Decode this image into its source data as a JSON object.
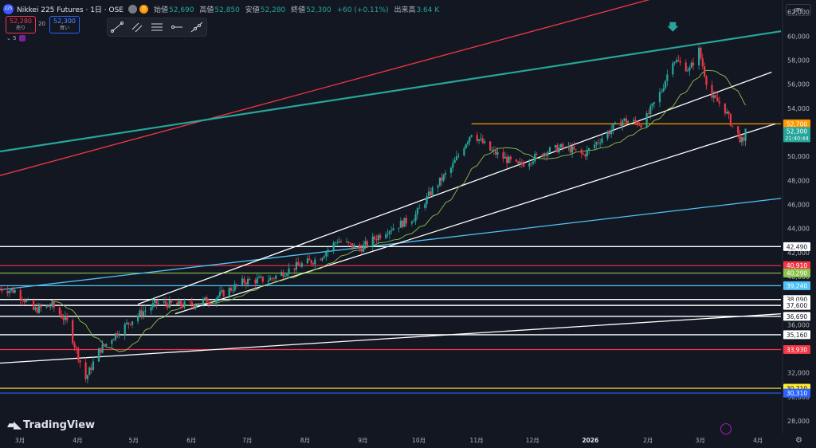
{
  "header": {
    "logo_text": "225",
    "symbol": "Nikkei 225 Futures · 1日 · OSE",
    "badge_d": "D",
    "open_label": "始値",
    "open_value": "52,690",
    "high_label": "高値",
    "high_value": "52,850",
    "low_label": "安値",
    "low_value": "52,280",
    "close_label": "終値",
    "close_value": "52,300",
    "change": "+60 (+0.11%)",
    "volume_label": "出来高",
    "volume_value": "3.64 K"
  },
  "trade": {
    "sell_price": "52,280",
    "sell_label": "売り",
    "quantity": "20",
    "buy_price": "52,300",
    "buy_label": "買い",
    "lot": "5"
  },
  "toolbar_icons": [
    "trend-line-icon",
    "channel-icon",
    "fib-icon",
    "ray-icon",
    "extended-line-icon"
  ],
  "currency": "JPY",
  "brand": "TradingView",
  "colors": {
    "up": "#26a69a",
    "down": "#f23645",
    "ma": "#8bc34a",
    "teal_trend": "#26a69a",
    "red_trend": "#f23645",
    "blue_trend": "#4fc3f7",
    "orange_level": "#ff9800"
  },
  "chart_data": {
    "type": "candlestick",
    "ylim": [
      27000,
      63000
    ],
    "y_ticks": [
      28000,
      30000,
      32000,
      34000,
      36000,
      38000,
      40000,
      42000,
      44000,
      46000,
      48000,
      50000,
      52000,
      54000,
      56000,
      58000,
      60000,
      62000
    ],
    "x_ticks": [
      "3月",
      "4月",
      "5月",
      "6月",
      "7月",
      "8月",
      "9月",
      "10月",
      "11月",
      "12月",
      "2026",
      "2月",
      "3月",
      "4月"
    ],
    "last_price": {
      "value": 52300,
      "timer": "21:40:44"
    },
    "price_levels": [
      {
        "value": 52700,
        "label": "52,700",
        "color": "#ff9800"
      },
      {
        "value": 42490,
        "label": "42,490",
        "color": "#ffffff"
      },
      {
        "value": 40910,
        "label": "40,910",
        "color": "#f23645"
      },
      {
        "value": 40290,
        "label": "40,290",
        "color": "#8bc34a"
      },
      {
        "value": 39240,
        "label": "39,240",
        "color": "#4fc3f7"
      },
      {
        "value": 38090,
        "label": "38,090",
        "color": "#ffffff"
      },
      {
        "value": 37600,
        "label": "37,600",
        "color": "#ffffff"
      },
      {
        "value": 36690,
        "label": "36,690",
        "color": "#ffffff"
      },
      {
        "value": 35160,
        "label": "35,160",
        "color": "#ffffff"
      },
      {
        "value": 33930,
        "label": "33,930",
        "color": "#f23645"
      },
      {
        "value": 30710,
        "label": "30,710",
        "color": "#ffeb3b"
      },
      {
        "value": 30310,
        "label": "30,310",
        "color": "#2962ff"
      }
    ],
    "close_path": [
      [
        "2025-02-20",
        39000
      ],
      [
        "2025-03-01",
        38800
      ],
      [
        "2025-03-10",
        37200
      ],
      [
        "2025-03-20",
        37600
      ],
      [
        "2025-03-28",
        36200
      ],
      [
        "2025-04-07",
        31500
      ],
      [
        "2025-04-14",
        33800
      ],
      [
        "2025-04-25",
        35500
      ],
      [
        "2025-05-05",
        36800
      ],
      [
        "2025-05-15",
        37800
      ],
      [
        "2025-06-01",
        37600
      ],
      [
        "2025-06-15",
        38200
      ],
      [
        "2025-07-01",
        39600
      ],
      [
        "2025-07-15",
        39800
      ],
      [
        "2025-07-28",
        40800
      ],
      [
        "2025-08-10",
        41500
      ],
      [
        "2025-08-20",
        43000
      ],
      [
        "2025-09-01",
        42300
      ],
      [
        "2025-09-15",
        43800
      ],
      [
        "2025-09-30",
        44900
      ],
      [
        "2025-10-10",
        47200
      ],
      [
        "2025-10-20",
        49000
      ],
      [
        "2025-10-31",
        52000
      ],
      [
        "2025-11-10",
        50500
      ],
      [
        "2025-11-25",
        49200
      ],
      [
        "2025-12-10",
        50400
      ],
      [
        "2025-12-20",
        50800
      ],
      [
        "2025-12-30",
        50100
      ],
      [
        "2026-01-10",
        51700
      ],
      [
        "2026-01-20",
        53000
      ],
      [
        "2026-01-31",
        52700
      ],
      [
        "2026-02-10",
        55500
      ],
      [
        "2026-02-16",
        58100
      ],
      [
        "2026-02-25",
        57200
      ],
      [
        "2026-03-02",
        58800
      ],
      [
        "2026-03-08",
        55000
      ],
      [
        "2026-03-15",
        54200
      ],
      [
        "2026-03-20",
        52500
      ],
      [
        "2026-03-26",
        51000
      ],
      [
        "2026-03-28",
        52300
      ]
    ],
    "trend_lines": [
      {
        "name": "red",
        "from": [
          "2025-02-20",
          48400
        ],
        "to": [
          "2026-04-15",
          66000
        ],
        "color": "#f23645"
      },
      {
        "name": "teal",
        "from": [
          "2025-02-20",
          50400
        ],
        "to": [
          "2026-04-15",
          60400
        ],
        "color": "#26a69a"
      },
      {
        "name": "blue",
        "from": [
          "2025-02-20",
          38900
        ],
        "to": [
          "2026-04-15",
          46500
        ],
        "color": "#4fc3f7"
      },
      {
        "name": "white-upper",
        "from": [
          "2025-05-05",
          37700
        ],
        "to": [
          "2026-04-10",
          57000
        ],
        "color": "#ffffff"
      },
      {
        "name": "white-lower",
        "from": [
          "2025-05-25",
          36900
        ],
        "to": [
          "2026-04-12",
          52700
        ],
        "color": "#ffffff"
      },
      {
        "name": "white-long",
        "from": [
          "2025-02-20",
          32800
        ],
        "to": [
          "2026-04-15",
          36900
        ],
        "color": "#ffffff"
      }
    ]
  }
}
